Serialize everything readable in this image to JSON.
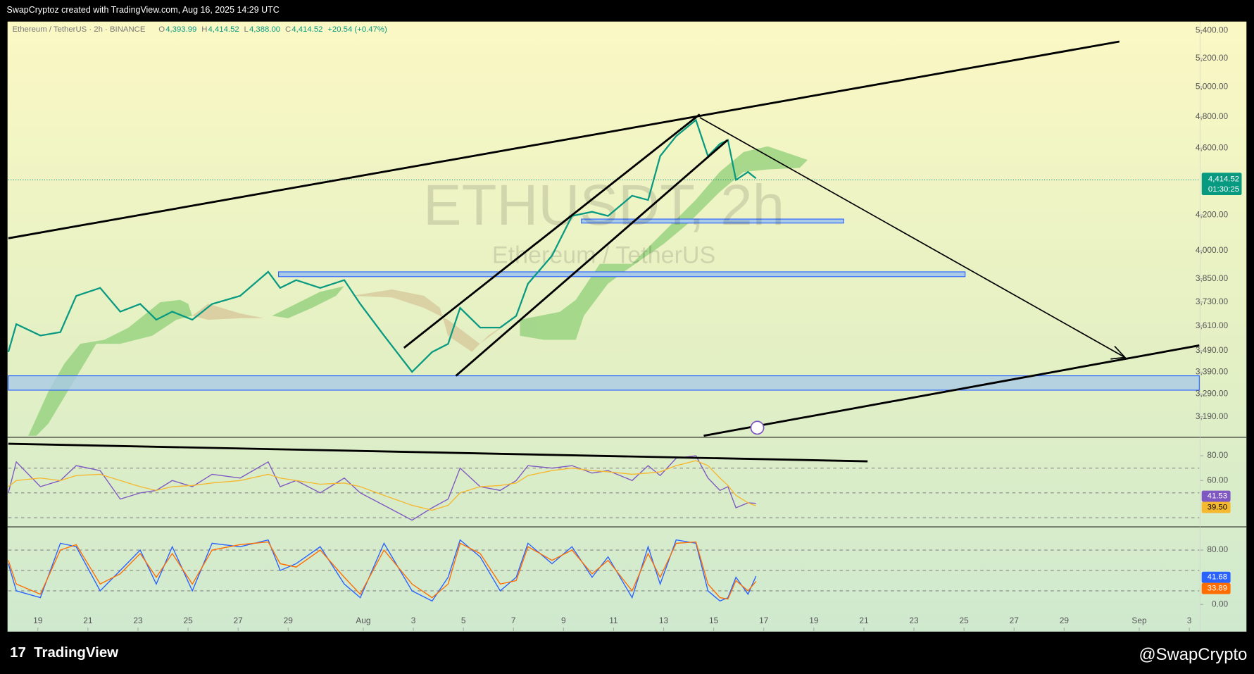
{
  "header": {
    "credit": "SwapCryptoz created with TradingView.com, Aug 16, 2025 14:29 UTC"
  },
  "legend": {
    "symbol": "Ethereum / TetherUS · 2h · BINANCE",
    "ohlc": [
      {
        "label": "O",
        "value": "4,393.99"
      },
      {
        "label": "H",
        "value": "4,414.52"
      },
      {
        "label": "L",
        "value": "4,388.00"
      },
      {
        "label": "C",
        "value": "4,414.52"
      }
    ],
    "change": "+20.54 (+0.47%)"
  },
  "watermark": {
    "ticker": "ETHUSDT, 2h",
    "name": "Ethereum / TetherUS"
  },
  "price_label": {
    "price": "4,414.52",
    "countdown": "01:30:25"
  },
  "footer": {
    "brand": "TradingView",
    "author": "@SwapCrypto"
  },
  "chart_data": [
    {
      "type": "line",
      "log": true,
      "x": [
        -1.18,
        -0.86,
        0.1,
        0.9,
        1.53,
        2.49,
        3.29,
        4.09,
        4.73,
        5.37,
        6.17,
        6.96,
        8.08,
        9.2,
        9.68,
        10.32,
        11.28,
        12.24,
        12.88,
        13.83,
        14.95,
        15.75,
        16.39,
        16.87,
        17.67,
        18.47,
        19.11,
        19.58,
        20.54,
        21.34,
        22.14,
        22.78,
        23.74,
        24.38,
        24.86,
        25.5,
        26.29,
        26.77,
        27.25,
        27.57,
        27.89,
        28.37,
        28.69
      ],
      "series": [
        {
          "name": "ETHUSDT",
          "color": "#089981",
          "values": [
            3484,
            3619,
            3563,
            3580,
            3761,
            3802,
            3681,
            3720,
            3641,
            3681,
            3641,
            3720,
            3761,
            3887,
            3802,
            3843,
            3802,
            3843,
            3720,
            3563,
            3391,
            3484,
            3523,
            3700,
            3602,
            3602,
            3660,
            3824,
            3973,
            4194,
            4218,
            4194,
            4311,
            4286,
            4550,
            4676,
            4780,
            4550,
            4627,
            4651,
            4405,
            4453,
            4414.52
          ]
        }
      ],
      "xlim": [
        -1.18,
        46.4
      ],
      "ylim": [
        3105,
        5460
      ],
      "yticks": [
        {
          "value": 3190,
          "label": "3,190.00"
        },
        {
          "value": 3290,
          "label": "3,290.00"
        },
        {
          "value": 3390,
          "label": "3,390.00"
        },
        {
          "value": 3490,
          "label": "3,490.00"
        },
        {
          "value": 3610,
          "label": "3,610.00"
        },
        {
          "value": 3730,
          "label": "3,730.00"
        },
        {
          "value": 3850,
          "label": "3,850.00"
        },
        {
          "value": 4000,
          "label": "4,000.00"
        },
        {
          "value": 4200,
          "label": "4,200.00"
        },
        {
          "value": 4600,
          "label": "4,600.00"
        },
        {
          "value": 4800,
          "label": "4,800.00"
        },
        {
          "value": 5000,
          "label": "5,000.00"
        },
        {
          "value": 5200,
          "label": "5,200.00"
        },
        {
          "value": 5400,
          "label": "5,400.00"
        }
      ]
    },
    {
      "type": "line",
      "x": [
        -1.18,
        -0.86,
        0.1,
        0.9,
        1.53,
        2.49,
        3.29,
        4.09,
        4.73,
        5.37,
        6.17,
        6.96,
        8.08,
        9.2,
        9.68,
        10.32,
        11.28,
        12.24,
        12.88,
        13.83,
        14.95,
        15.75,
        16.39,
        16.87,
        17.67,
        18.47,
        19.11,
        19.58,
        20.54,
        21.34,
        22.14,
        22.78,
        23.74,
        24.38,
        24.86,
        25.5,
        26.29,
        26.77,
        27.25,
        27.57,
        27.89,
        28.37,
        28.69
      ],
      "series": [
        {
          "name": "RSI",
          "color": "#7e57c2",
          "values": [
            50,
            75,
            55,
            60,
            72,
            68,
            45,
            50,
            52,
            60,
            55,
            65,
            62,
            75,
            55,
            60,
            50,
            62,
            50,
            40,
            28,
            38,
            45,
            70,
            55,
            52,
            60,
            72,
            70,
            72,
            66,
            68,
            60,
            72,
            64,
            78,
            80,
            62,
            52,
            55,
            38,
            42,
            41.53
          ]
        },
        {
          "name": "RSI MA",
          "color": "#f5b82e",
          "values": [
            55,
            60,
            62,
            60,
            64,
            65,
            60,
            55,
            52,
            55,
            56,
            58,
            60,
            65,
            62,
            60,
            57,
            58,
            55,
            48,
            40,
            36,
            40,
            50,
            55,
            56,
            58,
            64,
            68,
            70,
            68,
            67,
            65,
            66,
            67,
            72,
            76,
            72,
            62,
            56,
            48,
            42,
            39.5
          ]
        }
      ],
      "last_labels": [
        "41.53",
        "39.50"
      ],
      "xlim": [
        -1.18,
        46.4
      ],
      "ylim": [
        23.2,
        94.2
      ],
      "bands": [
        70,
        50,
        30
      ],
      "yticks": [
        {
          "value": 80,
          "label": "80.00"
        },
        {
          "value": 60,
          "label": "60.00"
        }
      ]
    },
    {
      "type": "line",
      "x": [
        -1.18,
        -0.86,
        0.1,
        0.9,
        1.53,
        2.49,
        3.29,
        4.09,
        4.73,
        5.37,
        6.17,
        6.96,
        8.08,
        9.2,
        9.68,
        10.32,
        11.28,
        12.24,
        12.88,
        13.83,
        14.95,
        15.75,
        16.39,
        16.87,
        17.67,
        18.47,
        19.11,
        19.58,
        20.54,
        21.34,
        22.14,
        22.78,
        23.74,
        24.38,
        24.86,
        25.5,
        26.29,
        26.77,
        27.25,
        27.57,
        27.89,
        28.37,
        28.69
      ],
      "series": [
        {
          "name": "%K",
          "color": "#2962ff",
          "values": [
            60,
            20,
            10,
            90,
            85,
            20,
            50,
            80,
            30,
            85,
            20,
            90,
            85,
            95,
            50,
            60,
            85,
            30,
            10,
            90,
            20,
            5,
            40,
            95,
            70,
            20,
            40,
            90,
            60,
            85,
            40,
            70,
            10,
            85,
            30,
            95,
            90,
            20,
            5,
            10,
            40,
            15,
            41.68
          ]
        },
        {
          "name": "%D",
          "color": "#ff6d00",
          "values": [
            65,
            30,
            15,
            80,
            88,
            30,
            45,
            75,
            40,
            75,
            30,
            80,
            88,
            92,
            60,
            55,
            80,
            40,
            15,
            80,
            30,
            10,
            30,
            90,
            75,
            30,
            35,
            85,
            65,
            80,
            45,
            65,
            20,
            75,
            40,
            90,
            92,
            30,
            10,
            8,
            35,
            20,
            33.89
          ]
        }
      ],
      "last_labels": [
        "41.68",
        "33.89"
      ],
      "xlim": [
        -1.18,
        46.4
      ],
      "ylim": [
        -13,
        113
      ],
      "bands": [
        80,
        50,
        20
      ],
      "yticks": [
        {
          "value": 80,
          "label": "80.00"
        },
        {
          "value": 0,
          "label": "0.00"
        }
      ],
      "xticks": [
        {
          "value": 0,
          "label": "19"
        },
        {
          "value": 2,
          "label": "21"
        },
        {
          "value": 4,
          "label": "23"
        },
        {
          "value": 6,
          "label": "25"
        },
        {
          "value": 8,
          "label": "27"
        },
        {
          "value": 10,
          "label": "29"
        },
        {
          "value": 13,
          "label": "Aug"
        },
        {
          "value": 15,
          "label": "3"
        },
        {
          "value": 17,
          "label": "5"
        },
        {
          "value": 19,
          "label": "7"
        },
        {
          "value": 21,
          "label": "9"
        },
        {
          "value": 23,
          "label": "11"
        },
        {
          "value": 25,
          "label": "13"
        },
        {
          "value": 27,
          "label": "15"
        },
        {
          "value": 29,
          "label": "17"
        },
        {
          "value": 31,
          "label": "19"
        },
        {
          "value": 33,
          "label": "21"
        },
        {
          "value": 35,
          "label": "23"
        },
        {
          "value": 37,
          "label": "25"
        },
        {
          "value": 39,
          "label": "27"
        },
        {
          "value": 41,
          "label": "29"
        },
        {
          "value": 44,
          "label": "Sep"
        },
        {
          "value": 46,
          "label": "3"
        }
      ]
    }
  ]
}
